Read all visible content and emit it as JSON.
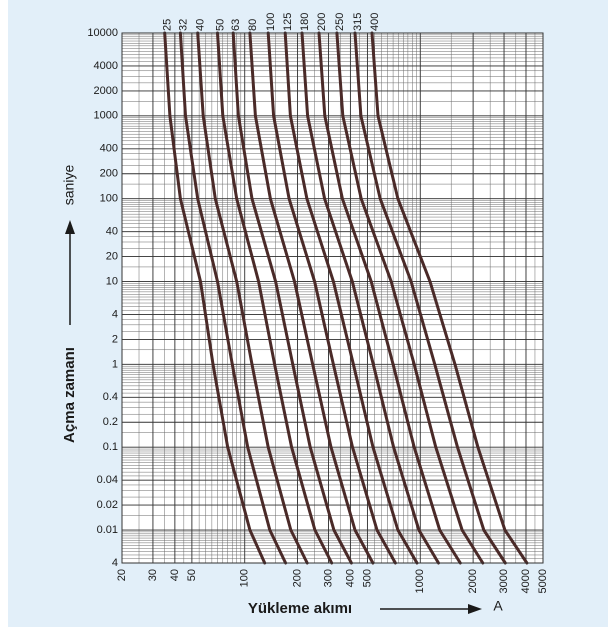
{
  "chart_data": {
    "type": "line",
    "y_label": "Açma zamanı",
    "y_unit": "saniye",
    "x_label": "Yükleme akımı",
    "x_unit": "A",
    "log_x": true,
    "log_y": true,
    "grid": true,
    "xlim": [
      20,
      5000
    ],
    "ylim": [
      0.004,
      10000
    ],
    "xticks": [
      20,
      30,
      40,
      50,
      100,
      200,
      300,
      400,
      500,
      1000,
      2000,
      3000,
      4000,
      5000
    ],
    "yticks": [
      {
        "value": 0.004,
        "label": "4"
      },
      0.01,
      0.02,
      0.04,
      0.1,
      0.2,
      0.4,
      1,
      2,
      4,
      10,
      20,
      40,
      100,
      200,
      400,
      1000,
      2000,
      4000,
      10000
    ],
    "y": [
      10000,
      1000,
      100,
      10,
      1,
      0.1,
      0.01,
      0.004
    ],
    "color": "#4a2a28",
    "series": [
      {
        "name": "25",
        "x": [
          35,
          37.5,
          43,
          56,
          66,
          80,
          107,
          130
        ]
      },
      {
        "name": "32",
        "x": [
          43,
          46,
          54,
          70,
          85,
          104,
          139,
          171
        ]
      },
      {
        "name": "40",
        "x": [
          54,
          58,
          68,
          90,
          110,
          136,
          183,
          227
        ]
      },
      {
        "name": "50",
        "x": [
          70,
          75,
          90,
          120,
          148,
          185,
          251,
          313
        ]
      },
      {
        "name": "63",
        "x": [
          86,
          92,
          110,
          150,
          188,
          236,
          322,
          405
        ]
      },
      {
        "name": "80",
        "x": [
          107,
          115,
          140,
          192,
          244,
          310,
          425,
          537
        ]
      },
      {
        "name": "100",
        "x": [
          136,
          146,
          179,
          250,
          320,
          411,
          567,
          722
        ]
      },
      {
        "name": "125",
        "x": [
          170,
          182,
          226,
          320,
          416,
          538,
          746,
          958
        ]
      },
      {
        "name": "180",
        "x": [
          212,
          228,
          285,
          410,
          540,
          705,
          982,
          1270
        ]
      },
      {
        "name": "200",
        "x": [
          265,
          286,
          360,
          525,
          700,
          923,
          1290,
          1690
        ]
      },
      {
        "name": "250",
        "x": [
          335,
          362,
          461,
          683,
          923,
          1225,
          1730,
          2270
        ]
      },
      {
        "name": "315",
        "x": [
          425,
          459,
          591,
          886,
          1210,
          1630,
          2300,
          3050
        ]
      },
      {
        "name": "400",
        "x": [
          531,
          574,
          746,
          1136,
          1576,
          2130,
          3035,
          4050
        ]
      }
    ]
  }
}
